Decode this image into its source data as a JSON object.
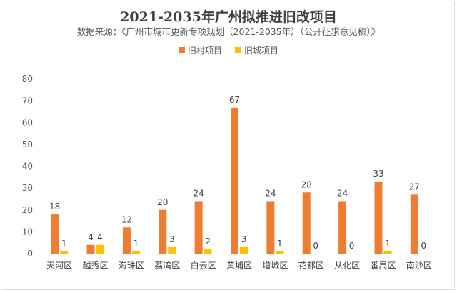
{
  "chart_data": {
    "type": "bar",
    "title": "2021-2035年广州拟推进旧改项目",
    "subtitle": "数据来源：《广州市城市更新专项规划（2021-2035年）（公开征求意见稿）》",
    "categories": [
      "天河区",
      "越秀区",
      "海珠区",
      "荔湾区",
      "白云区",
      "黄埔区",
      "增城区",
      "花都区",
      "从化区",
      "番禺区",
      "南沙区"
    ],
    "series": [
      {
        "name": "旧村项目",
        "color": "#ed7d31",
        "values": [
          18,
          4,
          12,
          20,
          24,
          67,
          24,
          28,
          24,
          33,
          27
        ]
      },
      {
        "name": "旧城项目",
        "color": "#ffc000",
        "values": [
          1,
          4,
          1,
          3,
          2,
          3,
          1,
          0,
          0,
          1,
          0
        ]
      }
    ],
    "ylim": [
      0,
      80
    ],
    "yticks": [
      0,
      10,
      20,
      30,
      40,
      50,
      60,
      70,
      80
    ],
    "grid": false,
    "legend_position": "top"
  }
}
